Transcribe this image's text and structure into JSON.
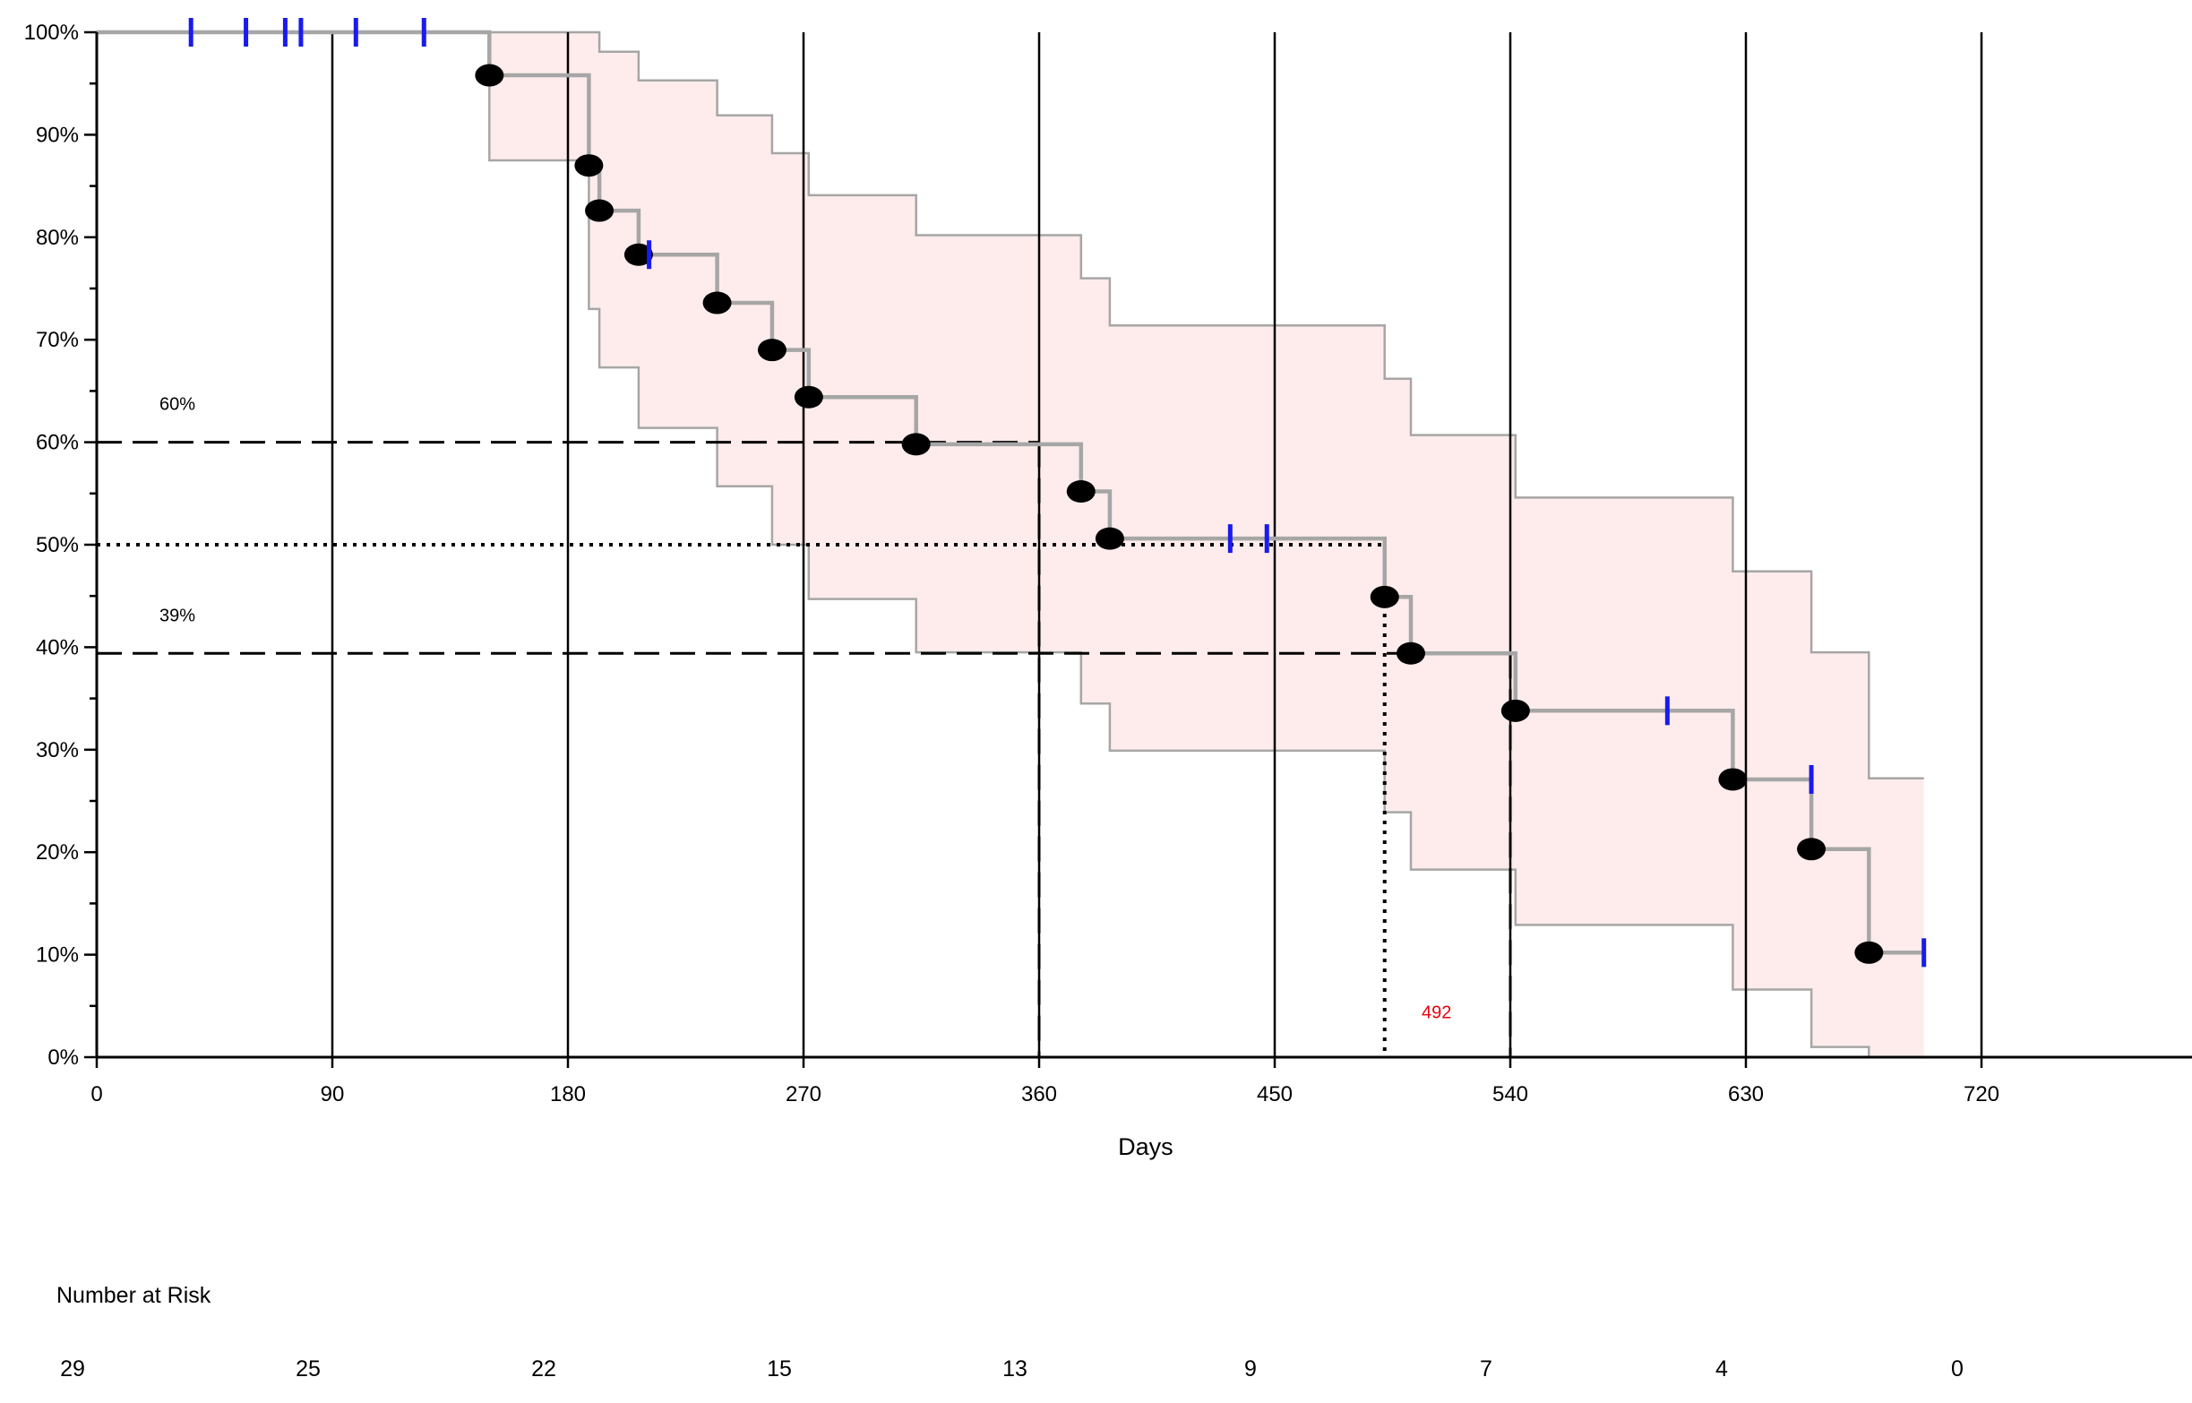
{
  "chart_data": {
    "type": "line",
    "subtype": "kaplan-meier survival curve with confidence band",
    "title": "",
    "xlabel": "Days",
    "ylabel": "",
    "xlim": [
      0,
      800
    ],
    "ylim": [
      0,
      100
    ],
    "x_ticks": [
      0,
      90,
      180,
      270,
      360,
      450,
      540,
      630,
      720
    ],
    "y_ticks": [
      0,
      10,
      20,
      30,
      40,
      50,
      60,
      70,
      80,
      90,
      100
    ],
    "y_tick_suffix": "%",
    "grid": "vertical lines at x ticks",
    "colors": {
      "curve": "#a6a6a6",
      "band_fill": "#fdeceb",
      "band_edge": "#a6a6a6",
      "censor": "#1a1aee",
      "event": "#000000",
      "annotation": "#e8000b"
    },
    "survival_steps": [
      [
        0,
        100
      ],
      [
        150,
        95.8
      ],
      [
        188,
        87.0
      ],
      [
        192,
        82.6
      ],
      [
        207,
        78.3
      ],
      [
        237,
        73.6
      ],
      [
        258,
        69.0
      ],
      [
        272,
        64.4
      ],
      [
        313,
        59.8
      ],
      [
        376,
        55.2
      ],
      [
        387,
        50.6
      ],
      [
        492,
        44.9
      ],
      [
        502,
        39.4
      ],
      [
        542,
        33.8
      ],
      [
        625,
        27.1
      ],
      [
        655,
        20.3
      ],
      [
        677,
        10.2
      ],
      [
        698,
        10.2
      ]
    ],
    "events": [
      [
        150,
        95.8
      ],
      [
        188,
        87.0
      ],
      [
        192,
        82.6
      ],
      [
        207,
        78.3
      ],
      [
        237,
        73.6
      ],
      [
        258,
        69.0
      ],
      [
        272,
        64.4
      ],
      [
        313,
        59.8
      ],
      [
        376,
        55.2
      ],
      [
        387,
        50.6
      ],
      [
        492,
        44.9
      ],
      [
        502,
        39.4
      ],
      [
        542,
        33.8
      ],
      [
        625,
        27.1
      ],
      [
        655,
        20.3
      ],
      [
        677,
        10.2
      ]
    ],
    "censored": [
      [
        36,
        100
      ],
      [
        57,
        100
      ],
      [
        72,
        100
      ],
      [
        78,
        100
      ],
      [
        99,
        100
      ],
      [
        125,
        100
      ],
      [
        211,
        78.3
      ],
      [
        433,
        50.6
      ],
      [
        447,
        50.6
      ],
      [
        600,
        33.8
      ],
      [
        655,
        27.1
      ],
      [
        698,
        10.2
      ]
    ],
    "ci_upper": [
      [
        0,
        100
      ],
      [
        190,
        100
      ],
      [
        192,
        98.1
      ],
      [
        207,
        95.3
      ],
      [
        237,
        91.9
      ],
      [
        258,
        88.2
      ],
      [
        272,
        84.1
      ],
      [
        313,
        80.2
      ],
      [
        376,
        76.0
      ],
      [
        387,
        71.4
      ],
      [
        492,
        66.2
      ],
      [
        502,
        60.7
      ],
      [
        542,
        54.6
      ],
      [
        625,
        47.4
      ],
      [
        655,
        39.5
      ],
      [
        677,
        27.2
      ],
      [
        698,
        27.2
      ]
    ],
    "ci_lower": [
      [
        150,
        87.5
      ],
      [
        188,
        73.0
      ],
      [
        192,
        67.3
      ],
      [
        207,
        61.4
      ],
      [
        237,
        55.7
      ],
      [
        258,
        50.0
      ],
      [
        272,
        44.7
      ],
      [
        313,
        39.5
      ],
      [
        376,
        34.5
      ],
      [
        387,
        29.9
      ],
      [
        492,
        23.9
      ],
      [
        502,
        18.3
      ],
      [
        542,
        12.9
      ],
      [
        625,
        6.6
      ],
      [
        655,
        1.0
      ],
      [
        677,
        0
      ],
      [
        698,
        0
      ]
    ],
    "reference_lines": [
      {
        "style": "dashed",
        "y": 60,
        "x_end": 360,
        "label": "60%"
      },
      {
        "style": "dotted",
        "y": 50,
        "x_end": 492
      },
      {
        "style": "dashed",
        "y": 39.4,
        "x_end": 540,
        "label": "39%"
      }
    ],
    "median_annotation": {
      "x": 492,
      "label": "492"
    },
    "risk_table": {
      "title": "Number at Risk",
      "x": [
        0,
        90,
        180,
        270,
        360,
        450,
        540,
        630,
        720
      ],
      "counts": [
        "29",
        "25",
        "22",
        "15",
        "13",
        "9",
        "7",
        "4",
        "0"
      ]
    }
  }
}
